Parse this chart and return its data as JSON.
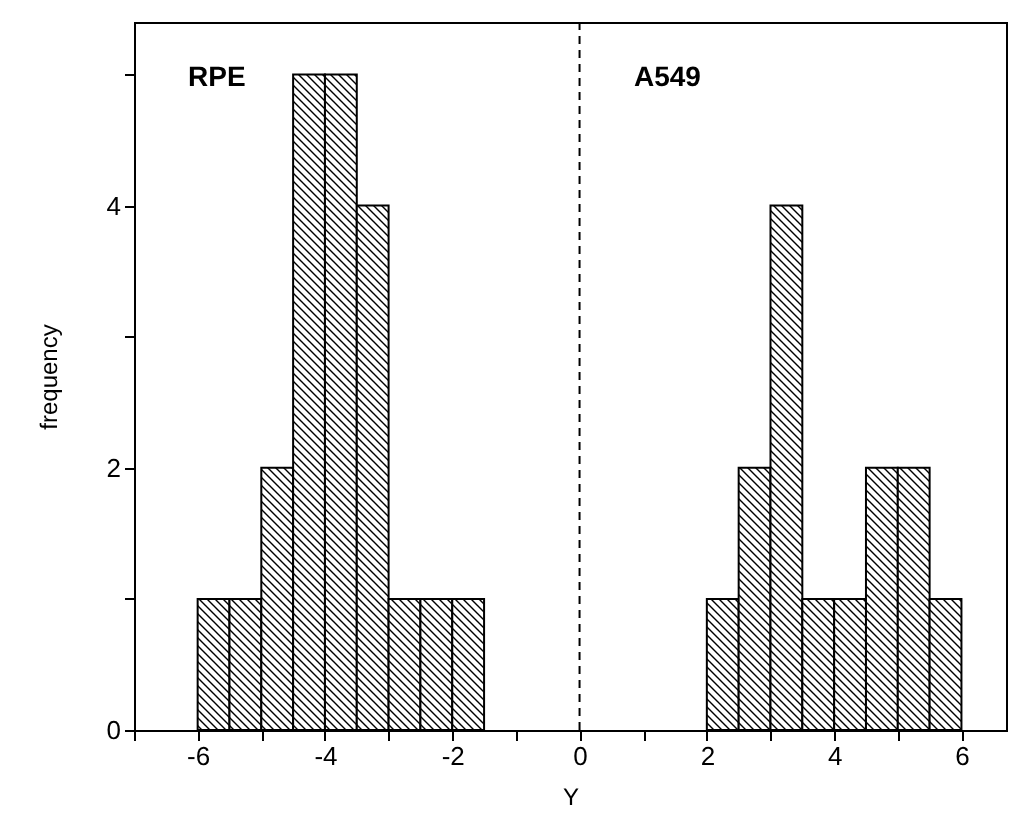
{
  "chart_data": {
    "type": "histogram",
    "xlabel": "Y",
    "ylabel": "frequency",
    "color": "#000000",
    "bins": [
      -6,
      -5.5,
      -5,
      -4.5,
      -4,
      -3.5,
      -3,
      -2.5,
      -2,
      -1.5,
      -1,
      -0.5,
      0,
      0.5,
      1,
      1.5,
      2,
      2.5,
      3,
      3.5,
      4,
      4.5,
      5,
      5.5,
      6
    ],
    "values": [
      1,
      1,
      2,
      5,
      5,
      4,
      1,
      1,
      1,
      0,
      0,
      0,
      0,
      0,
      0,
      0,
      1,
      2,
      4,
      1,
      1,
      2,
      2,
      1
    ],
    "xlim": [
      -7,
      6.7
    ],
    "xticks": [
      {
        "value": -7,
        "label": null
      },
      -6,
      {
        "value": -5,
        "label": null
      },
      -4,
      {
        "value": -3,
        "label": null
      },
      -2,
      {
        "value": -1,
        "label": null
      },
      0,
      {
        "value": 1,
        "label": null
      },
      2,
      {
        "value": 3,
        "label": null
      },
      4,
      {
        "value": 5,
        "label": null
      },
      6
    ],
    "ylim": [
      0,
      5.4
    ],
    "yticks": [
      0,
      {
        "value": 1,
        "label": null
      },
      2,
      {
        "value": 3,
        "label": null
      },
      4,
      {
        "value": 5,
        "label": null
      }
    ],
    "ref_lines": [
      {
        "axis": "x",
        "value": 0,
        "line_style": "dashed",
        "color": "#000000"
      }
    ],
    "annotations": [
      "RPE",
      "A549"
    ],
    "grid": false
  }
}
